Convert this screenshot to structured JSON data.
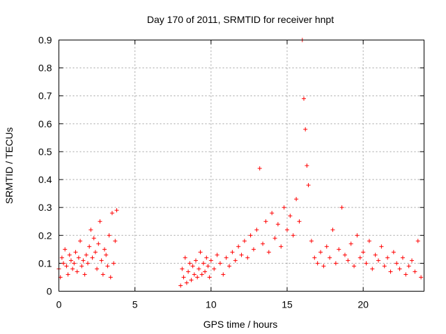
{
  "chart_data": {
    "type": "scatter",
    "title": "Day 170 of 2011, SRMTID for receiver hnpt",
    "xlabel": "GPS time / hours",
    "ylabel": "SRMTID / TECUs",
    "xlim": [
      0,
      24
    ],
    "ylim": [
      0,
      0.9
    ],
    "xticks": [
      0,
      5,
      10,
      15,
      20
    ],
    "xtick_labels": [
      "0",
      "5",
      "10",
      "15",
      "20"
    ],
    "yticks": [
      0,
      0.1,
      0.2,
      0.3,
      0.4,
      0.5,
      0.6,
      0.7,
      0.8,
      0.9
    ],
    "ytick_labels": [
      "0",
      "0.1",
      "0.2",
      "0.3",
      "0.4",
      "0.5",
      "0.6",
      "0.7",
      "0.8",
      "0.9"
    ],
    "grid": true,
    "marker": "+",
    "color": "#ff0000",
    "series": [
      {
        "name": "SRMTID",
        "x": [
          0.0,
          0.1,
          0.2,
          0.3,
          0.4,
          0.5,
          0.6,
          0.7,
          0.8,
          0.9,
          1.0,
          1.1,
          1.2,
          1.3,
          1.4,
          1.5,
          1.6,
          1.7,
          1.8,
          1.9,
          2.0,
          2.1,
          2.2,
          2.3,
          2.4,
          2.5,
          2.6,
          2.7,
          2.8,
          2.9,
          3.0,
          3.1,
          3.2,
          3.3,
          3.4,
          3.5,
          3.6,
          3.7,
          3.8,
          8.0,
          8.1,
          8.2,
          8.3,
          8.4,
          8.5,
          8.6,
          8.7,
          8.8,
          8.9,
          9.0,
          9.1,
          9.2,
          9.3,
          9.4,
          9.5,
          9.6,
          9.7,
          9.8,
          9.9,
          10.0,
          10.2,
          10.4,
          10.6,
          10.8,
          11.0,
          11.2,
          11.4,
          11.6,
          11.8,
          12.0,
          12.2,
          12.4,
          12.6,
          12.8,
          13.0,
          13.2,
          13.4,
          13.6,
          13.8,
          14.0,
          14.2,
          14.4,
          14.6,
          14.8,
          15.0,
          15.2,
          15.4,
          15.6,
          15.8,
          16.0,
          16.1,
          16.2,
          16.3,
          16.4,
          16.6,
          16.8,
          17.0,
          17.2,
          17.4,
          17.6,
          17.8,
          18.0,
          18.2,
          18.4,
          18.6,
          18.8,
          19.0,
          19.2,
          19.4,
          19.6,
          19.8,
          20.0,
          20.2,
          20.4,
          20.6,
          20.8,
          21.0,
          21.2,
          21.4,
          21.6,
          21.8,
          22.0,
          22.2,
          22.4,
          22.6,
          22.8,
          23.0,
          23.2,
          23.4,
          23.6,
          23.8
        ],
        "y": [
          0.08,
          0.05,
          0.12,
          0.1,
          0.15,
          0.09,
          0.06,
          0.13,
          0.11,
          0.08,
          0.1,
          0.14,
          0.07,
          0.12,
          0.18,
          0.09,
          0.11,
          0.06,
          0.13,
          0.1,
          0.16,
          0.22,
          0.12,
          0.19,
          0.14,
          0.08,
          0.17,
          0.25,
          0.11,
          0.06,
          0.15,
          0.13,
          0.09,
          0.2,
          0.05,
          0.28,
          0.1,
          0.18,
          0.29,
          0.02,
          0.08,
          0.05,
          0.12,
          0.03,
          0.07,
          0.1,
          0.04,
          0.09,
          0.06,
          0.11,
          0.05,
          0.08,
          0.14,
          0.06,
          0.1,
          0.07,
          0.12,
          0.09,
          0.05,
          0.11,
          0.08,
          0.13,
          0.1,
          0.06,
          0.12,
          0.09,
          0.14,
          0.11,
          0.16,
          0.13,
          0.18,
          0.12,
          0.2,
          0.15,
          0.22,
          0.44,
          0.17,
          0.25,
          0.14,
          0.28,
          0.19,
          0.24,
          0.16,
          0.3,
          0.22,
          0.27,
          0.2,
          0.33,
          0.25,
          0.9,
          0.69,
          0.58,
          0.45,
          0.38,
          0.18,
          0.12,
          0.1,
          0.14,
          0.09,
          0.16,
          0.12,
          0.22,
          0.1,
          0.15,
          0.3,
          0.13,
          0.11,
          0.17,
          0.09,
          0.2,
          0.12,
          0.14,
          0.1,
          0.18,
          0.08,
          0.13,
          0.11,
          0.16,
          0.09,
          0.12,
          0.07,
          0.14,
          0.1,
          0.08,
          0.12,
          0.06,
          0.09,
          0.11,
          0.07,
          0.18,
          0.05
        ]
      }
    ]
  }
}
